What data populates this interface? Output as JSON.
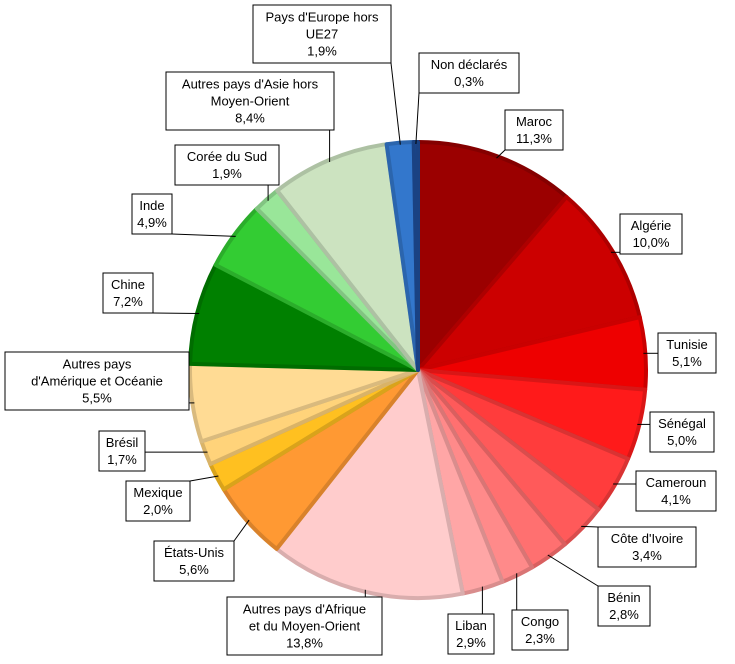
{
  "chart_data": {
    "type": "pie",
    "title": "",
    "slices": [
      {
        "label": "Maroc",
        "value": 11.3,
        "value_label": "11,3%",
        "color": "#9b0000"
      },
      {
        "label": "Algérie",
        "value": 10.0,
        "value_label": "10,0%",
        "color": "#cc0000"
      },
      {
        "label": "Tunisie",
        "value": 5.1,
        "value_label": "5,1%",
        "color": "#ee0000"
      },
      {
        "label": "Sénégal",
        "value": 5.0,
        "value_label": "5,0%",
        "color": "#ff1a1a"
      },
      {
        "label": "Cameroun",
        "value": 4.1,
        "value_label": "4,1%",
        "color": "#ff3c3c"
      },
      {
        "label": "Côte d'Ivoire",
        "value": 3.4,
        "value_label": "3,4%",
        "color": "#ff5a5a"
      },
      {
        "label": "Bénin",
        "value": 2.8,
        "value_label": "2,8%",
        "color": "#ff7070"
      },
      {
        "label": "Congo",
        "value": 2.3,
        "value_label": "2,3%",
        "color": "#ff8a8a"
      },
      {
        "label": "Liban",
        "value": 2.9,
        "value_label": "2,9%",
        "color": "#ffa6a6"
      },
      {
        "label": "Autres pays d'Afrique et du Moyen-Orient",
        "value": 13.8,
        "value_label": "13,8%",
        "color": "#ffcccc"
      },
      {
        "label": "États-Unis",
        "value": 5.6,
        "value_label": "5,6%",
        "color": "#ff9933"
      },
      {
        "label": "Mexique",
        "value": 2.0,
        "value_label": "2,0%",
        "color": "#ffc020"
      },
      {
        "label": "Brésil",
        "value": 1.7,
        "value_label": "1,7%",
        "color": "#ffd37a"
      },
      {
        "label": "Autres pays d'Amérique et Océanie",
        "value": 5.5,
        "value_label": "5,5%",
        "color": "#ffdb94"
      },
      {
        "label": "Chine",
        "value": 7.2,
        "value_label": "7,2%",
        "color": "#008000"
      },
      {
        "label": "Inde",
        "value": 4.9,
        "value_label": "4,9%",
        "color": "#33cc33"
      },
      {
        "label": "Corée du Sud",
        "value": 1.9,
        "value_label": "1,9%",
        "color": "#99e699"
      },
      {
        "label": "Autres pays d'Asie hors Moyen-Orient",
        "value": 8.4,
        "value_label": "8,4%",
        "color": "#cce3c0"
      },
      {
        "label": "Pays d'Europe hors UE27",
        "value": 1.9,
        "value_label": "1,9%",
        "color": "#3377cc"
      },
      {
        "label": "Non déclarés",
        "value": 0.3,
        "value_label": "0,3%",
        "color": "#1f4e9a"
      }
    ],
    "legend": "none",
    "data_labels": "callouts outside the pie"
  }
}
